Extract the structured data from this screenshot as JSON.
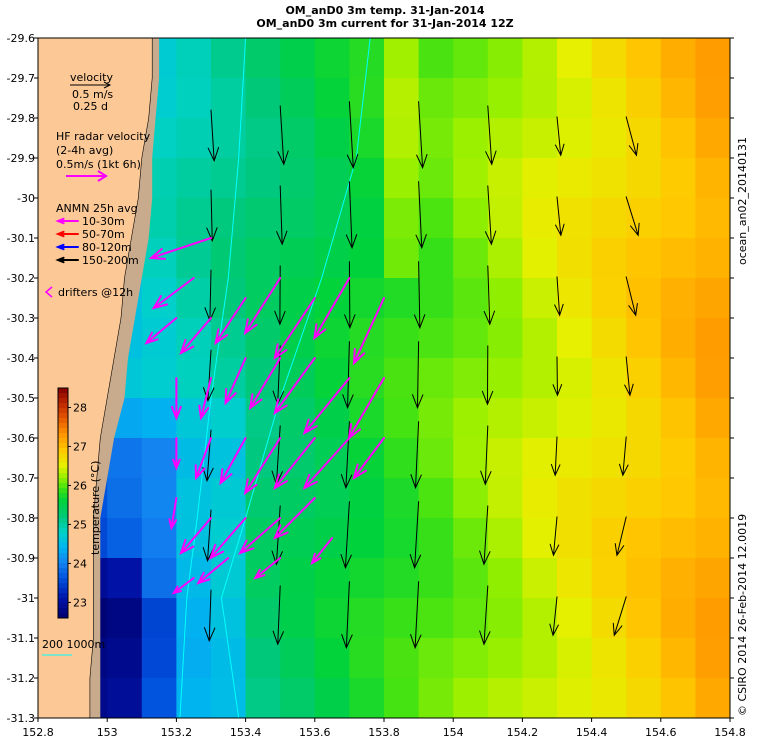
{
  "title_line1": "OM_anD0 3m temp. 31-Jan-2014",
  "title_line2": "OM_anD0 3m current for 31-Jan-2014 12Z",
  "right_label_top": "ocean_an02_20140131",
  "right_label_bottom": "© CSIRO 2014   26-Feb-2014 12.0019",
  "legend": {
    "velocity_label": "velocity",
    "velocity_scale": "0.5 m/s",
    "velocity_time": "0.25 d",
    "hf_title": "HF radar velocity",
    "hf_avg": "(2-4h avg)",
    "hf_scale": "0.5m/s (1kt 6h)",
    "anmn_title": "ANMN 25h avg",
    "anmn_items": [
      {
        "label": "10-30m",
        "color": "#ff00ff"
      },
      {
        "label": "50-70m",
        "color": "#ff0000"
      },
      {
        "label": "80-120m",
        "color": "#0000ff"
      },
      {
        "label": "150-200m",
        "color": "#000000"
      }
    ],
    "drifters_label": "drifters @12h",
    "isobath_label": "200  1000m"
  },
  "colorbar": {
    "label": "temperature (°C)",
    "ticks": [
      "23",
      "24",
      "25",
      "26",
      "27",
      "28"
    ],
    "min": 22.6,
    "max": 28.5
  },
  "axes": {
    "x_ticks": [
      "152.8",
      "153",
      "153.2",
      "153.4",
      "153.6",
      "153.8",
      "154",
      "154.2",
      "154.4",
      "154.6",
      "154.8"
    ],
    "y_ticks": [
      "-29.6",
      "-29.7",
      "-29.8",
      "-29.9",
      "-30",
      "-30.1",
      "-30.2",
      "-30.3",
      "-30.4",
      "-30.5",
      "-30.6",
      "-30.7",
      "-30.8",
      "-30.9",
      "-31",
      "-31.1",
      "-31.2",
      "-31.3"
    ],
    "lon_min": 152.8,
    "lon_max": 154.8,
    "lat_max": -29.6,
    "lat_min": -31.3
  },
  "colors": {
    "land": "#fcc896",
    "shelf": "#c8aa8c",
    "hf_radar": "#ff00ff",
    "isobath": "#00ffff",
    "model_arrow": "#000000"
  }
}
